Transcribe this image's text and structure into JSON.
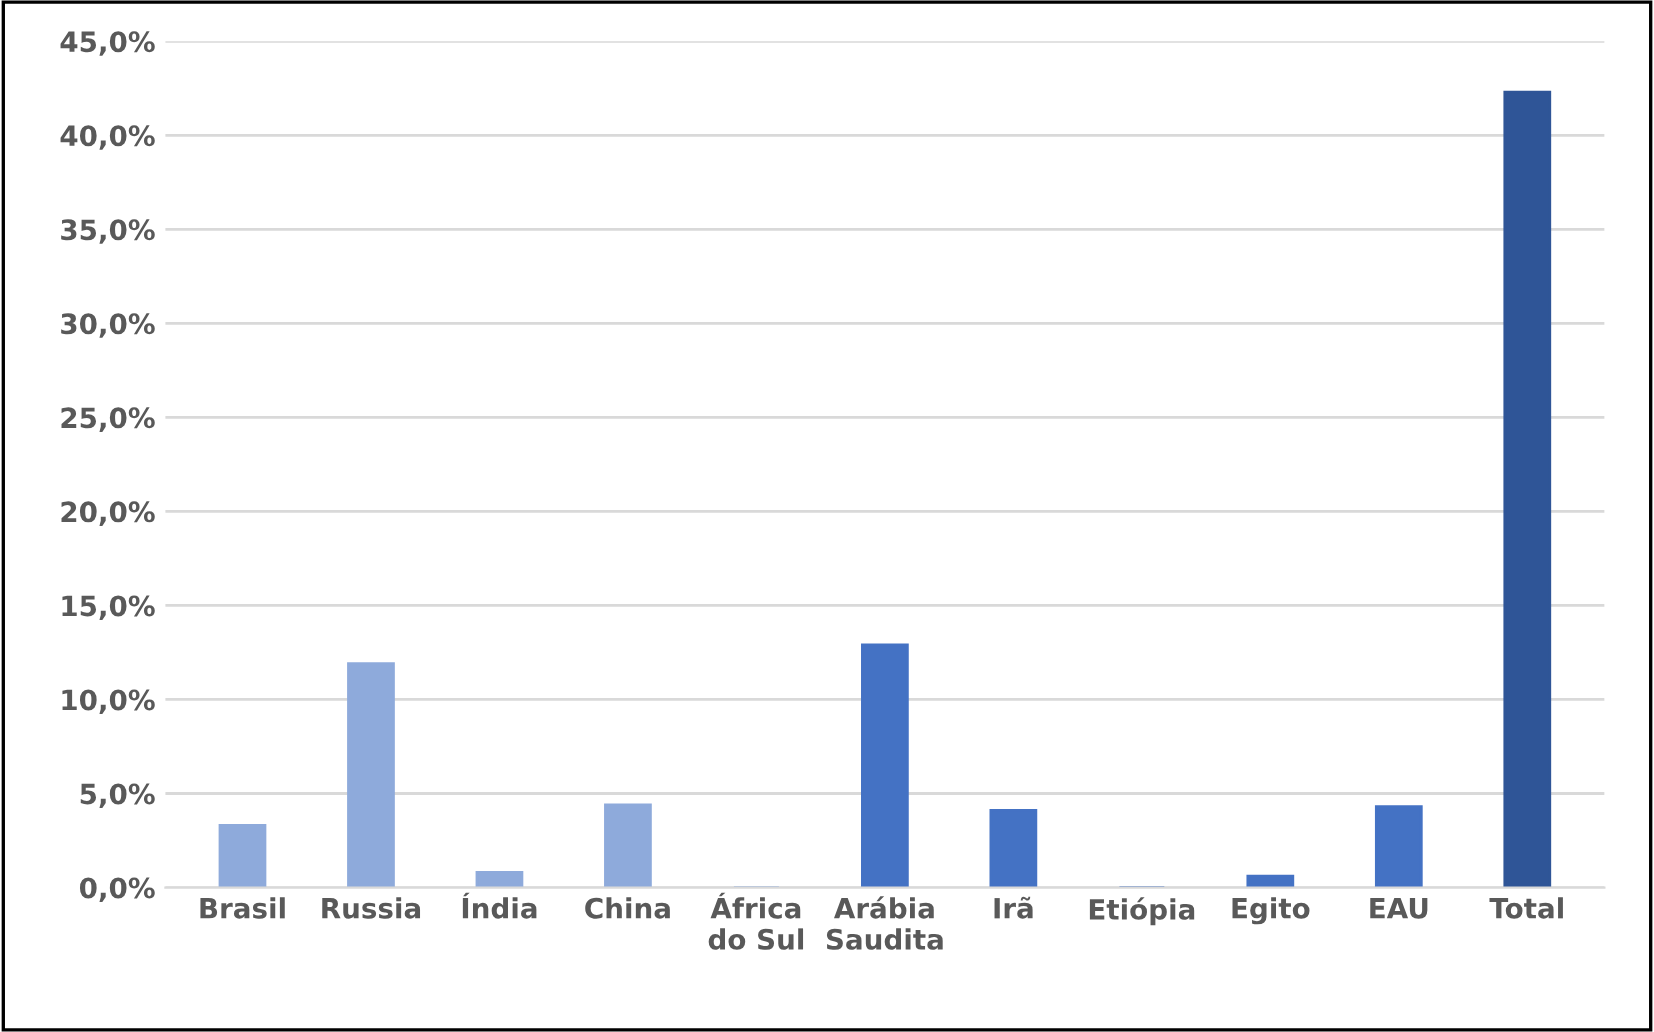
{
  "chart_data": {
    "type": "bar",
    "categories": [
      "Brasil",
      "Russia",
      "Índia",
      "China",
      "África\ndo Sul",
      "Arábia\nSaudita",
      "Irã",
      "Etiópia",
      "Egito",
      "EAU",
      "Total"
    ],
    "values": [
      3.3,
      11.9,
      0.8,
      4.4,
      0.0,
      12.9,
      4.1,
      0.0,
      0.6,
      4.3,
      42.3
    ],
    "colors": [
      "#8eaadb",
      "#8eaadb",
      "#8eaadb",
      "#8eaadb",
      "#8eaadb",
      "#4472c4",
      "#4472c4",
      "#4472c4",
      "#4472c4",
      "#4472c4",
      "#2f5597"
    ],
    "ylim": [
      0,
      45
    ],
    "yticks": [
      {
        "value": 0,
        "label": "0,0%"
      },
      {
        "value": 5,
        "label": "5,0%"
      },
      {
        "value": 10,
        "label": "10,0%"
      },
      {
        "value": 15,
        "label": "15,0%"
      },
      {
        "value": 20,
        "label": "20,0%"
      },
      {
        "value": 25,
        "label": "25,0%"
      },
      {
        "value": 30,
        "label": "30,0%"
      },
      {
        "value": 35,
        "label": "35,0%"
      },
      {
        "value": 40,
        "label": "40,0%"
      },
      {
        "value": 45,
        "label": "45,0%"
      }
    ],
    "grid": "y",
    "legend": false
  }
}
